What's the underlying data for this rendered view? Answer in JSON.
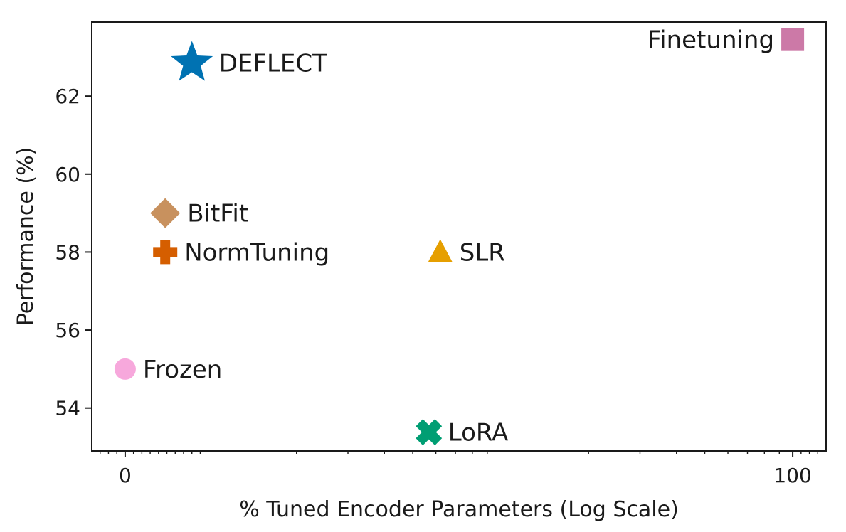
{
  "chart_data": {
    "type": "scatter",
    "title": "",
    "xlabel": "% Tuned Encoder Parameters (Log Scale)",
    "ylabel": "Performance (%)",
    "x_scale": "log",
    "xlim": [
      -0.05,
      1.05
    ],
    "ylim": [
      52.9,
      63.9
    ],
    "x_ticks": [
      {
        "value": 0,
        "label": "0"
      },
      {
        "value": 1,
        "label": "100"
      }
    ],
    "y_ticks": [
      {
        "value": 54,
        "label": "54"
      },
      {
        "value": 56,
        "label": "56"
      },
      {
        "value": 58,
        "label": "58"
      },
      {
        "value": 60,
        "label": "60"
      },
      {
        "value": 62,
        "label": "62"
      }
    ],
    "grid": false,
    "legend": "none",
    "points": [
      {
        "label": "Frozen",
        "x": 0.0,
        "y": 55.0,
        "marker": "circle",
        "color": "#f7a8dc",
        "label_side": "right"
      },
      {
        "label": "BitFit",
        "x": 0.06,
        "y": 59.0,
        "marker": "diamond",
        "color": "#c8915e",
        "label_side": "right"
      },
      {
        "label": "NormTuning",
        "x": 0.06,
        "y": 58.0,
        "marker": "plus",
        "color": "#d55e00",
        "label_side": "right"
      },
      {
        "label": "DEFLECT",
        "x": 0.1,
        "y": 62.85,
        "marker": "star",
        "color": "#0072b2",
        "label_side": "right"
      },
      {
        "label": "LoRA",
        "x": 0.455,
        "y": 53.38,
        "marker": "x",
        "color": "#009e73",
        "label_side": "right"
      },
      {
        "label": "SLR",
        "x": 0.472,
        "y": 58.0,
        "marker": "triangle",
        "color": "#e69f00",
        "label_side": "right"
      },
      {
        "label": "Finetuning",
        "x": 1.0,
        "y": 63.45,
        "marker": "square",
        "color": "#cc79a7",
        "label_side": "left"
      }
    ]
  }
}
